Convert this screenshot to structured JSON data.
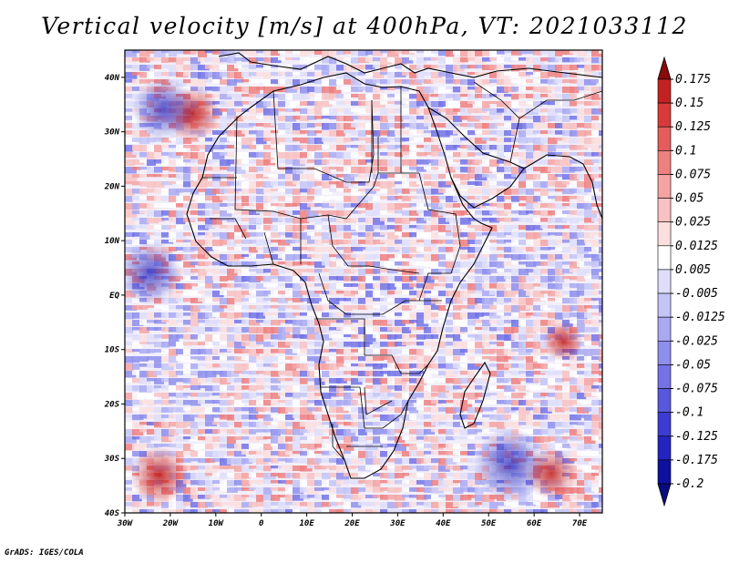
{
  "title": "Vertical velocity [m/s] at 400hPa, VT: 2021033112",
  "footer": "GrADS: IGES/COLA",
  "map": {
    "lon_range": [
      -30,
      75
    ],
    "lat_range": [
      -40,
      45
    ],
    "x_ticks": [
      {
        "lon": -30,
        "label": "30W"
      },
      {
        "lon": -20,
        "label": "20W"
      },
      {
        "lon": -10,
        "label": "10W"
      },
      {
        "lon": 0,
        "label": "0"
      },
      {
        "lon": 10,
        "label": "10E"
      },
      {
        "lon": 20,
        "label": "20E"
      },
      {
        "lon": 30,
        "label": "30E"
      },
      {
        "lon": 40,
        "label": "40E"
      },
      {
        "lon": 50,
        "label": "50E"
      },
      {
        "lon": 60,
        "label": "60E"
      },
      {
        "lon": 70,
        "label": "70E"
      }
    ],
    "y_ticks": [
      {
        "lat": 40,
        "label": "40N"
      },
      {
        "lat": 30,
        "label": "30N"
      },
      {
        "lat": 20,
        "label": "20N"
      },
      {
        "lat": 10,
        "label": "10N"
      },
      {
        "lat": 0,
        "label": "EQ"
      },
      {
        "lat": -10,
        "label": "10S"
      },
      {
        "lat": -20,
        "label": "20S"
      },
      {
        "lat": -30,
        "label": "30S"
      },
      {
        "lat": -40,
        "label": "40S"
      }
    ]
  },
  "colorbar": {
    "labels": [
      "0.175",
      "0.15",
      "0.125",
      "0.1",
      "0.075",
      "0.05",
      "0.025",
      "0.0125",
      "0.005",
      "-0.005",
      "-0.0125",
      "-0.025",
      "-0.05",
      "-0.075",
      "-0.1",
      "-0.125",
      "-0.175",
      "-0.2"
    ],
    "colors": [
      "#a01010",
      "#c42222",
      "#d83a3a",
      "#e55c5c",
      "#ee8080",
      "#f4a3a3",
      "#f8c2c2",
      "#fbdede",
      "#ffffff",
      "#dedefb",
      "#c4c4f7",
      "#a9a9f2",
      "#8e8eec",
      "#7373e6",
      "#5858de",
      "#3c3cd2",
      "#2424c0",
      "#1010a0"
    ],
    "top_color": "#8b0a0a",
    "bottom_color": "#0a0a80"
  }
}
